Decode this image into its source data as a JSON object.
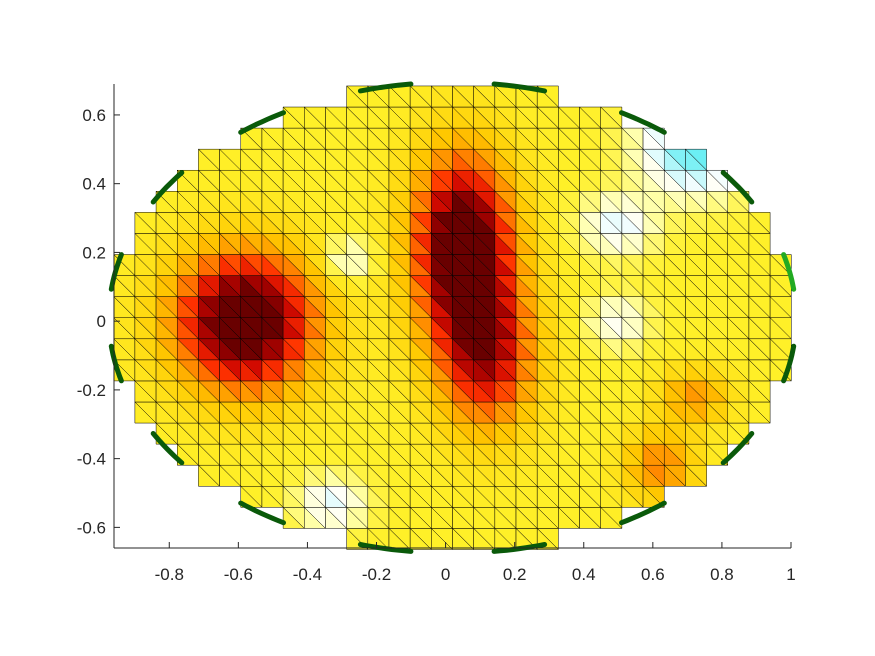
{
  "chart_data": {
    "type": "heatmap",
    "title": "",
    "xlabel": "",
    "ylabel": "",
    "xlim": [
      -0.96,
      1.0
    ],
    "ylim": [
      -0.66,
      0.69
    ],
    "x_ticks": [
      -0.8,
      -0.6,
      -0.4,
      -0.2,
      0,
      0.2,
      0.4,
      0.6,
      0.8,
      1
    ],
    "x_tick_labels": [
      "-0.8",
      "-0.6",
      "-0.4",
      "-0.2",
      "0",
      "0.2",
      "0.4",
      "0.6",
      "0.8",
      "1"
    ],
    "y_ticks": [
      0.6,
      0.4,
      0.2,
      0,
      -0.2,
      -0.4,
      -0.6
    ],
    "y_tick_labels": [
      "0.6",
      "0.4",
      "0.2",
      "0",
      "-0.2",
      "-0.4",
      "-0.6"
    ],
    "mesh": "triangulated square grid, cell size 0.0613, elliptical domain centered (0.02, 0.01), semi-axes 0.98 x 0.68",
    "colormap": "cyan-white-yellow-orange-red-dark red",
    "color_range": [
      -1,
      1
    ],
    "grid": false,
    "hot_spots": [
      {
        "x": -0.58,
        "y": 0.0,
        "strength": 0.95
      },
      {
        "x": 0.05,
        "y": 0.22,
        "strength": 0.95
      },
      {
        "x": 0.12,
        "y": -0.1,
        "strength": 0.6
      },
      {
        "x": 0.62,
        "y": -0.42,
        "strength": 0.35
      },
      {
        "x": 0.72,
        "y": -0.22,
        "strength": 0.3
      }
    ],
    "cold_spots": [
      {
        "x": 0.72,
        "y": 0.5,
        "strength": 0.85
      },
      {
        "x": 0.5,
        "y": 0.28,
        "strength": 0.45
      },
      {
        "x": -0.33,
        "y": -0.53,
        "strength": 0.45
      },
      {
        "x": -0.28,
        "y": 0.18,
        "strength": 0.3
      },
      {
        "x": 0.5,
        "y": 0.0,
        "strength": 0.35
      }
    ],
    "electrodes": {
      "count": 16,
      "color": "#0a5a0a",
      "highlight_color": "#22aa22",
      "highlight_index": 4
    }
  }
}
